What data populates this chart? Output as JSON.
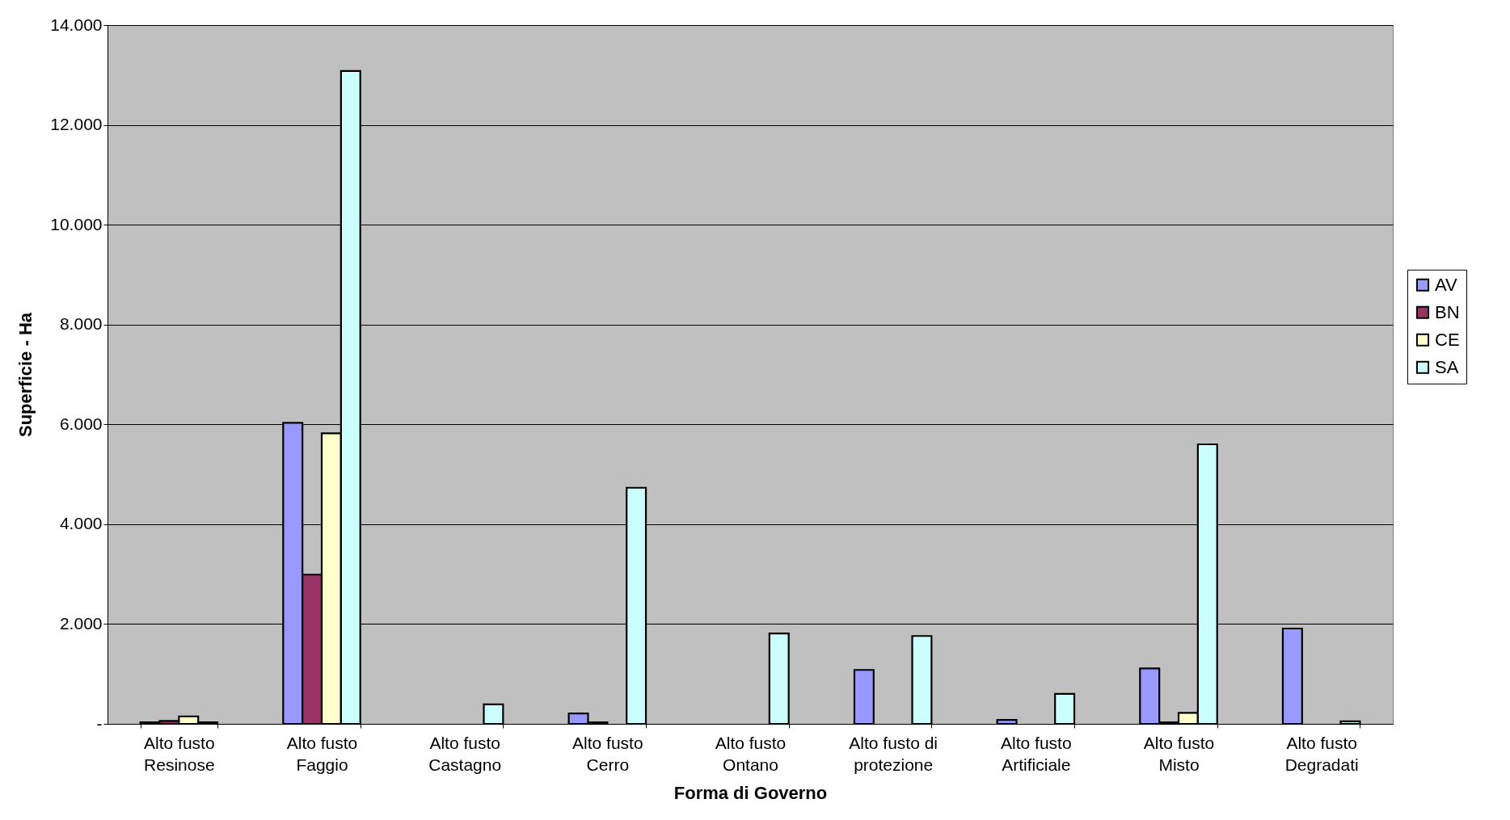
{
  "chart_data": {
    "type": "bar",
    "xlabel": "Forma di Governo",
    "ylabel": "Superficie - Ha",
    "categories": [
      "Alto fusto Resinose",
      "Alto fusto Faggio",
      "Alto fusto Castagno",
      "Alto fusto Cerro",
      "Alto fusto Ontano",
      "Alto fusto di protezione",
      "Alto fusto Artificiale",
      "Alto fusto Misto",
      "Alto fusto Degradati"
    ],
    "series": [
      {
        "name": "AV",
        "color": "#9999ff",
        "values": [
          30,
          6030,
          null,
          210,
          null,
          1080,
          80,
          1110,
          1910
        ]
      },
      {
        "name": "BN",
        "color": "#993366",
        "values": [
          60,
          2990,
          null,
          30,
          null,
          null,
          null,
          30,
          null
        ]
      },
      {
        "name": "CE",
        "color": "#ffffcc",
        "values": [
          150,
          5820,
          null,
          null,
          null,
          null,
          null,
          220,
          null
        ]
      },
      {
        "name": "SA",
        "color": "#ccffff",
        "values": [
          30,
          13080,
          390,
          4730,
          1810,
          1760,
          600,
          5600,
          50
        ]
      }
    ],
    "ylim": [
      0,
      14000
    ],
    "yticks": [
      {
        "value": 0,
        "label": "-"
      },
      {
        "value": 2000,
        "label": "2.000"
      },
      {
        "value": 4000,
        "label": "4.000"
      },
      {
        "value": 6000,
        "label": "6.000"
      },
      {
        "value": 8000,
        "label": "8.000"
      },
      {
        "value": 10000,
        "label": "10.000"
      },
      {
        "value": 12000,
        "label": "12.000"
      },
      {
        "value": 14000,
        "label": "14.000"
      }
    ],
    "grid": "y",
    "legend": "right"
  }
}
